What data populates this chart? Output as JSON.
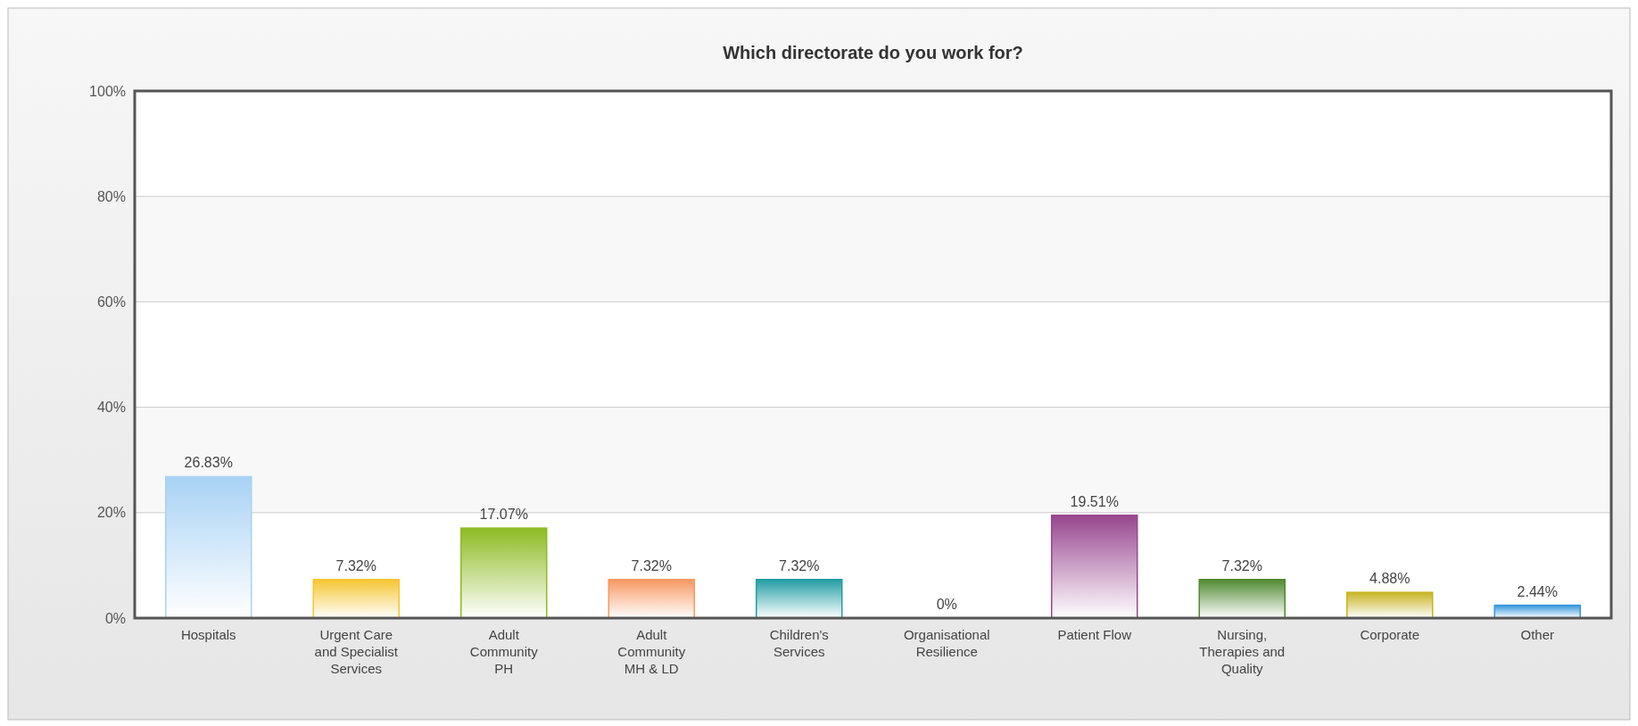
{
  "chart_data": {
    "type": "bar",
    "title": "Which directorate do you work for?",
    "categories": [
      "Hospitals",
      "Urgent Care and Specialist Services",
      "Adult Community PH",
      "Adult Community MH & LD",
      "Children's Services",
      "Organisational Resilience",
      "Patient Flow",
      "Nursing, Therapies and Quality",
      "Corporate",
      "Other"
    ],
    "values": [
      26.83,
      7.32,
      17.07,
      7.32,
      7.32,
      0,
      19.51,
      7.32,
      4.88,
      2.44
    ],
    "value_labels": [
      "26.83%",
      "7.32%",
      "17.07%",
      "7.32%",
      "7.32%",
      "0%",
      "19.51%",
      "7.32%",
      "4.88%",
      "2.44%"
    ],
    "colors": [
      "#a8d2f4",
      "#f6c531",
      "#8dbb22",
      "#f89862",
      "#229ea4",
      "#bbbbbb",
      "#98468f",
      "#4f8a31",
      "#c7b423",
      "#3596dc"
    ],
    "ylim": [
      0,
      100
    ],
    "yticks": [
      {
        "value": 0,
        "label": "0%"
      },
      {
        "value": 20,
        "label": "20%"
      },
      {
        "value": 40,
        "label": "40%"
      },
      {
        "value": 60,
        "label": "60%"
      },
      {
        "value": 80,
        "label": "80%"
      },
      {
        "value": 100,
        "label": "100%"
      }
    ],
    "grid": "y"
  }
}
